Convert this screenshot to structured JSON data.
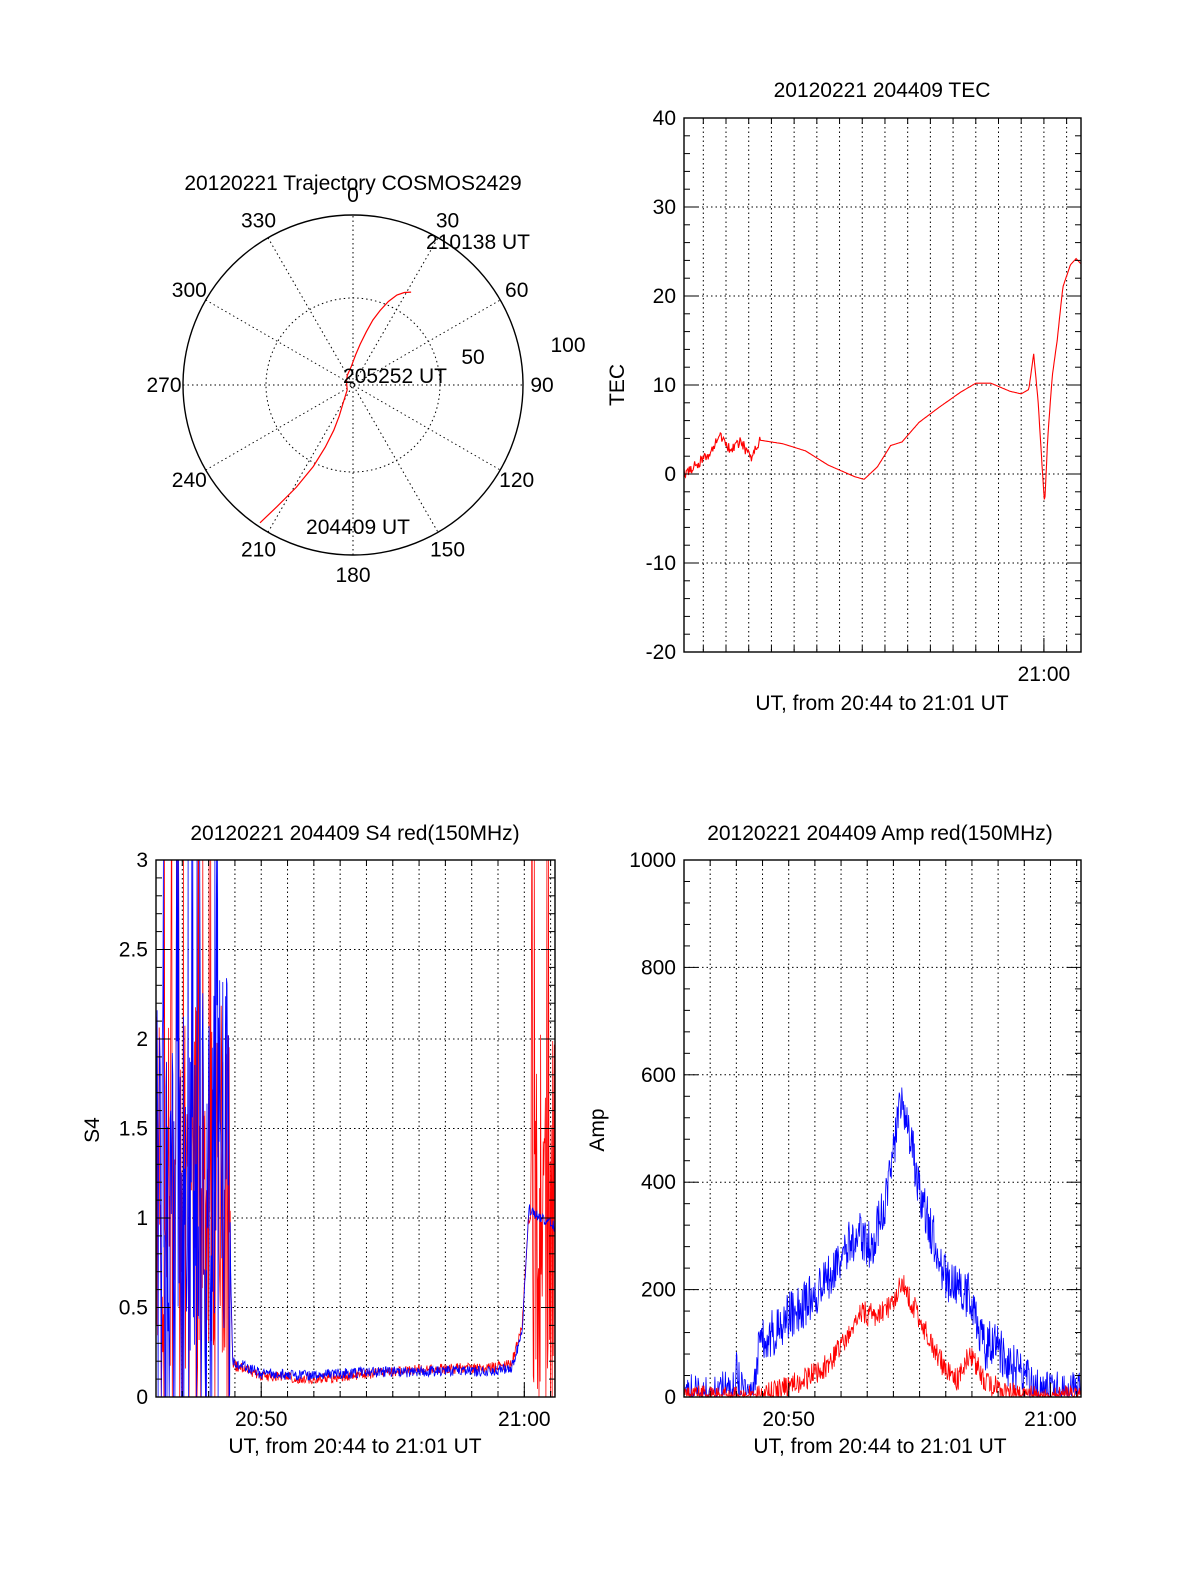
{
  "colors": {
    "red": "#ff0000",
    "blue": "#0000ff",
    "axis": "#000000"
  },
  "chart_data": [
    {
      "id": "trajectory",
      "type": "polar",
      "title": "20120221 Trajectory COSMOS2429",
      "azimuth_labels": [
        "0",
        "30",
        "60",
        "90",
        "120",
        "150",
        "180",
        "210",
        "240",
        "270",
        "300",
        "330"
      ],
      "radial_labels": [
        "50",
        "100"
      ],
      "rlim": [
        0,
        90
      ],
      "grid": true,
      "annotations": [
        {
          "text": "210138 UT",
          "az": 32,
          "zen": 58
        },
        {
          "text": "205252 UT",
          "az": 0,
          "zen": 0
        },
        {
          "text": "204409 UT",
          "az": 214,
          "zen": 88
        }
      ],
      "series": [
        {
          "color": "#ff0000",
          "points": [
            [
              214,
              88
            ],
            [
              212,
              76
            ],
            [
              209,
              62
            ],
            [
              206,
              48
            ],
            [
              204,
              36
            ],
            [
              203,
              26
            ],
            [
              204,
              18
            ],
            [
              210,
              10
            ],
            [
              230,
              4
            ],
            [
              300,
              4
            ],
            [
              330,
              6
            ],
            [
              355,
              10
            ],
            [
              5,
              16
            ],
            [
              10,
              22
            ],
            [
              14,
              29
            ],
            [
              17,
              36
            ],
            [
              20,
              42
            ],
            [
              23,
              48
            ],
            [
              26,
              53
            ],
            [
              29,
              56
            ],
            [
              32,
              58
            ]
          ]
        }
      ]
    },
    {
      "id": "tec",
      "type": "line",
      "title": "20120221 204409 TEC",
      "xlabel": "UT, from 20:44 to 21:01 UT",
      "ylabel": "TEC",
      "xlim": [
        "20:44:09",
        "21:01:38"
      ],
      "ylim": [
        -20,
        40
      ],
      "xticks": [
        {
          "t": "21:00",
          "label": "21:00"
        }
      ],
      "yticks": [
        -20,
        -10,
        0,
        10,
        20,
        30,
        40
      ],
      "grid": true,
      "series": [
        {
          "color": "#ff0000",
          "noise": 0.6,
          "noise_until": "20:47:30",
          "points": [
            [
              "20:44:09",
              0
            ],
            [
              "20:44:40",
              1
            ],
            [
              "20:45:20",
              2.5
            ],
            [
              "20:45:45",
              4.5
            ],
            [
              "20:46:10",
              2.8
            ],
            [
              "20:46:40",
              3.6
            ],
            [
              "20:47:05",
              1.8
            ],
            [
              "20:47:30",
              3.8
            ],
            [
              "20:48:30",
              3.4
            ],
            [
              "20:49:30",
              2.6
            ],
            [
              "20:50:30",
              1
            ],
            [
              "20:51:40",
              -0.3
            ],
            [
              "20:52:05",
              -0.6
            ],
            [
              "20:52:40",
              0.8
            ],
            [
              "20:53:15",
              3.2
            ],
            [
              "20:53:45",
              3.6
            ],
            [
              "20:54:30",
              5.8
            ],
            [
              "20:55:20",
              7.4
            ],
            [
              "20:56:20",
              9.2
            ],
            [
              "20:57:00",
              10.2
            ],
            [
              "20:57:40",
              10.2
            ],
            [
              "20:58:30",
              9.3
            ],
            [
              "20:59:00",
              9
            ],
            [
              "20:59:20",
              9.5
            ],
            [
              "20:59:33",
              13.5
            ],
            [
              "20:59:45",
              8
            ],
            [
              "20:59:55",
              1
            ],
            [
              "21:00:02",
              -3.5
            ],
            [
              "21:00:10",
              4
            ],
            [
              "21:00:22",
              11
            ],
            [
              "21:00:35",
              15
            ],
            [
              "21:00:50",
              21
            ],
            [
              "21:01:10",
              23.5
            ],
            [
              "21:01:25",
              24.2
            ],
            [
              "21:01:38",
              23.6
            ]
          ]
        }
      ]
    },
    {
      "id": "s4",
      "type": "line",
      "title": "20120221 204409 S4 red(150MHz)",
      "xlabel": "UT, from 20:44 to 21:01 UT",
      "ylabel": "S4",
      "xlim": [
        "20:46:00",
        "21:01:10"
      ],
      "ylim": [
        0,
        3
      ],
      "xticks": [
        {
          "t": "20:50",
          "label": "20:50"
        },
        {
          "t": "21:00",
          "label": "21:00"
        }
      ],
      "yticks": [
        {
          "v": 0,
          "label": "0"
        },
        {
          "v": 0.5,
          "label": "0.5"
        },
        {
          "v": 1,
          "label": "1"
        },
        {
          "v": 1.5,
          "label": "1.5"
        },
        {
          "v": 2,
          "label": "2"
        },
        {
          "v": 2.5,
          "label": "2.5"
        },
        {
          "v": 3,
          "label": "3"
        }
      ],
      "grid": true,
      "series": [
        {
          "color": "#ff0000",
          "spiky": [
            [
              "20:46:00",
              "20:48:50"
            ],
            [
              "21:00:15",
              "21:01:10"
            ]
          ],
          "noise": 0.03,
          "points": [
            [
              "20:46:00",
              1.2
            ],
            [
              "20:48:45",
              1.2
            ],
            [
              "20:48:55",
              0.18
            ],
            [
              "20:50:00",
              0.12
            ],
            [
              "20:52:00",
              0.1
            ],
            [
              "20:54:00",
              0.13
            ],
            [
              "20:56:00",
              0.15
            ],
            [
              "20:57:30",
              0.16
            ],
            [
              "20:58:30",
              0.16
            ],
            [
              "20:59:30",
              0.18
            ],
            [
              "20:59:55",
              0.4
            ],
            [
              "21:00:10",
              1
            ],
            [
              "21:01:10",
              1
            ]
          ]
        },
        {
          "color": "#0000ff",
          "spiky": [
            [
              "20:46:00",
              "20:48:50"
            ]
          ],
          "noise": 0.03,
          "points": [
            [
              "20:46:00",
              1.3
            ],
            [
              "20:48:45",
              1.3
            ],
            [
              "20:48:55",
              0.2
            ],
            [
              "20:50:00",
              0.13
            ],
            [
              "20:52:00",
              0.12
            ],
            [
              "20:54:00",
              0.14
            ],
            [
              "20:56:00",
              0.14
            ],
            [
              "20:57:30",
              0.15
            ],
            [
              "20:58:30",
              0.14
            ],
            [
              "20:59:30",
              0.16
            ],
            [
              "20:59:55",
              0.35
            ],
            [
              "21:00:10",
              1.05
            ],
            [
              "21:01:10",
              0.95
            ]
          ]
        }
      ]
    },
    {
      "id": "amp",
      "type": "line",
      "title": "20120221 204409 Amp red(150MHz)",
      "xlabel": "UT, from 20:44 to 21:01 UT",
      "ylabel": "Amp",
      "xlim": [
        "20:46:00",
        "21:01:10"
      ],
      "ylim": [
        0,
        1000
      ],
      "xticks": [
        {
          "t": "20:50",
          "label": "20:50"
        },
        {
          "t": "21:00",
          "label": "21:00"
        }
      ],
      "yticks": [
        0,
        200,
        400,
        600,
        800,
        1000
      ],
      "grid": true,
      "series": [
        {
          "color": "#0000ff",
          "noise": 45,
          "points": [
            [
              "20:46:00",
              3
            ],
            [
              "20:47:50",
              3
            ],
            [
              "20:48:00",
              50
            ],
            [
              "20:48:10",
              3
            ],
            [
              "20:48:40",
              3
            ],
            [
              "20:48:55",
              110
            ],
            [
              "20:49:30",
              120
            ],
            [
              "20:50:00",
              150
            ],
            [
              "20:51:00",
              190
            ],
            [
              "20:52:00",
              260
            ],
            [
              "20:52:40",
              310
            ],
            [
              "20:53:10",
              280
            ],
            [
              "20:53:40",
              360
            ],
            [
              "20:54:00",
              450
            ],
            [
              "20:54:20",
              560
            ],
            [
              "20:54:40",
              480
            ],
            [
              "20:55:00",
              380
            ],
            [
              "20:55:30",
              300
            ],
            [
              "20:56:00",
              220
            ],
            [
              "20:56:30",
              200
            ],
            [
              "20:57:00",
              180
            ],
            [
              "20:57:30",
              90
            ],
            [
              "20:57:50",
              110
            ],
            [
              "20:58:20",
              60
            ],
            [
              "20:59:00",
              40
            ],
            [
              "20:59:20",
              20
            ],
            [
              "20:59:40",
              3
            ],
            [
              "21:01:10",
              3
            ]
          ]
        },
        {
          "color": "#ff0000",
          "noise": 22,
          "points": [
            [
              "20:46:00",
              0
            ],
            [
              "20:49:00",
              0
            ],
            [
              "20:49:40",
              15
            ],
            [
              "20:50:30",
              30
            ],
            [
              "20:51:30",
              60
            ],
            [
              "20:52:10",
              110
            ],
            [
              "20:52:40",
              160
            ],
            [
              "20:53:20",
              150
            ],
            [
              "20:54:00",
              170
            ],
            [
              "20:54:20",
              220
            ],
            [
              "20:54:40",
              180
            ],
            [
              "20:55:10",
              130
            ],
            [
              "20:55:40",
              80
            ],
            [
              "20:56:00",
              50
            ],
            [
              "20:56:30",
              30
            ],
            [
              "20:56:50",
              80
            ],
            [
              "20:57:10",
              60
            ],
            [
              "20:57:30",
              30
            ],
            [
              "20:58:00",
              15
            ],
            [
              "20:58:40",
              5
            ],
            [
              "20:59:00",
              0
            ],
            [
              "21:01:10",
              0
            ]
          ]
        }
      ]
    }
  ]
}
